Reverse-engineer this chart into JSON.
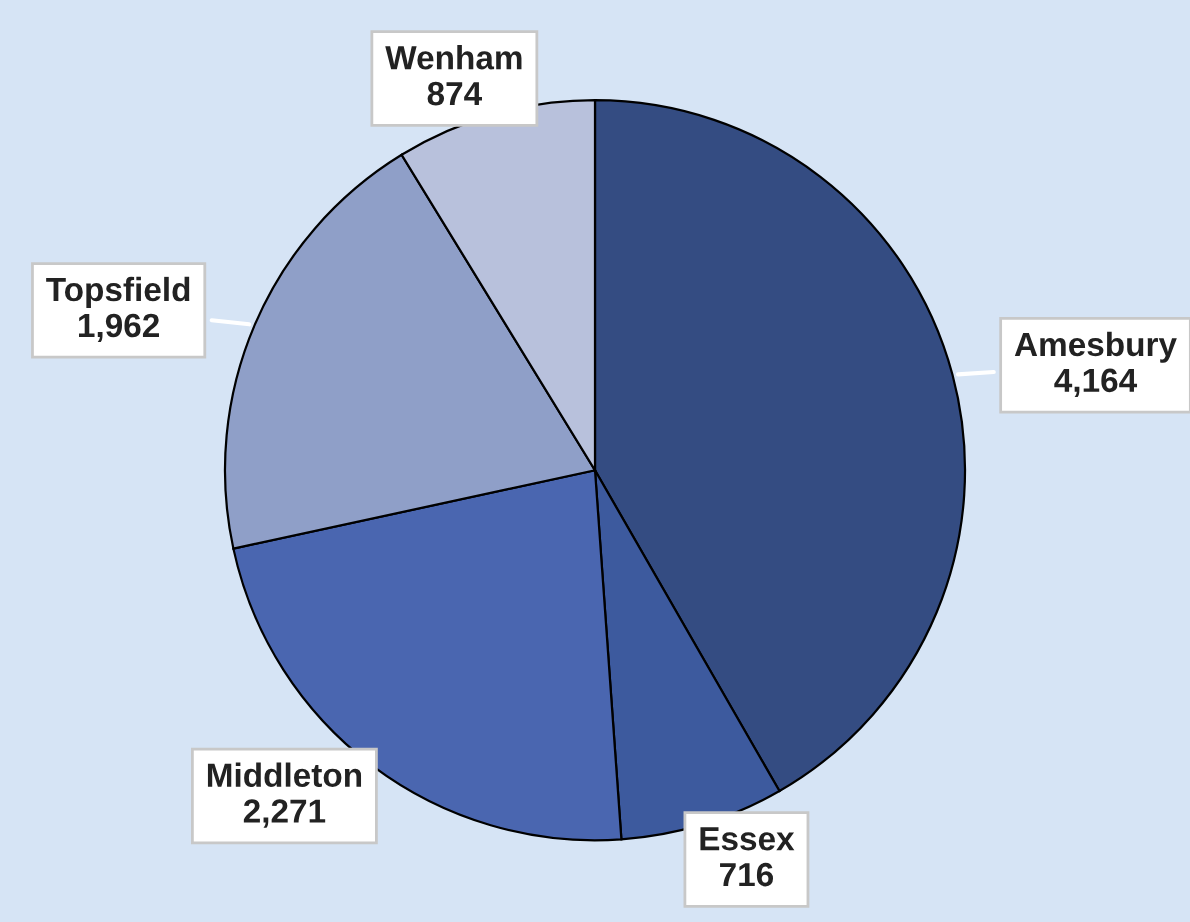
{
  "chart_data": {
    "type": "pie",
    "categories": [
      "Amesbury",
      "Essex",
      "Middleton",
      "Topsfield",
      "Wenham"
    ],
    "values": [
      4164,
      716,
      2271,
      1962,
      874
    ],
    "colors": [
      "#344c82",
      "#3d5a9e",
      "#4a66b0",
      "#8f9fc8",
      "#b8c1dc"
    ],
    "value_labels": [
      "4,164",
      "716",
      "2,271",
      "1,962",
      "874"
    ]
  }
}
